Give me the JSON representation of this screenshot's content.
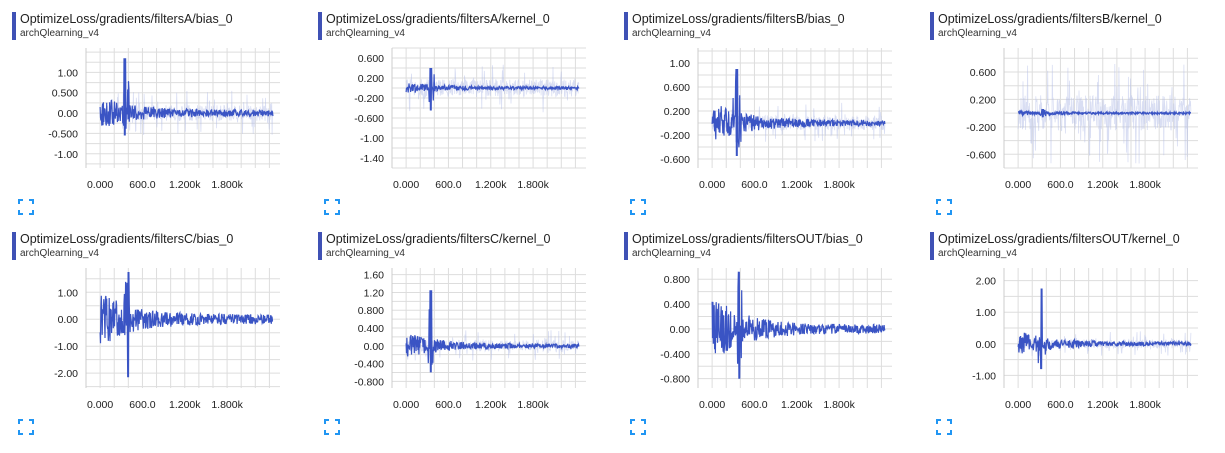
{
  "icons": {
    "expand": "expand-icon"
  },
  "colors": {
    "series": "#3a54c4",
    "series_faint": "#b4bee8",
    "grid": "#dddddd",
    "header_bar": "#3f51b5",
    "expand": "#2196f3"
  },
  "charts": [
    {
      "title": "OptimizeLoss/gradients/filtersA/bias_0",
      "run": "archQlearning_v4",
      "chart_data": {
        "type": "line",
        "series": [
          {
            "name": "archQlearning_v4"
          }
        ],
        "x_ticks": [
          0,
          600,
          1200,
          1800
        ],
        "x_tick_labels": [
          "0.000",
          "600.0",
          "1.200k",
          "1.800k"
        ],
        "xlim": [
          -200,
          2550
        ],
        "y_ticks": [
          1.0,
          0.5,
          0.0,
          -0.5,
          -1.0
        ],
        "y_tick_labels": [
          "1.00",
          "0.500",
          "0.00",
          "-0.500",
          "-1.00"
        ],
        "ylim": [
          -1.35,
          1.6
        ],
        "x_range": [
          0,
          2450
        ],
        "peak_x": 350,
        "peak_max": 1.35,
        "peak_min": -0.55,
        "early_amp": 0.35,
        "late_amp": 0.08,
        "center": 0.0,
        "noise_amp": 0.55,
        "grid": true
      }
    },
    {
      "title": "OptimizeLoss/gradients/filtersA/kernel_0",
      "run": "archQlearning_v4",
      "chart_data": {
        "type": "line",
        "series": [
          {
            "name": "archQlearning_v4"
          }
        ],
        "x_ticks": [
          0,
          600,
          1200,
          1800
        ],
        "x_tick_labels": [
          "0.000",
          "600.0",
          "1.200k",
          "1.800k"
        ],
        "xlim": [
          -200,
          2550
        ],
        "y_ticks": [
          0.6,
          0.2,
          -0.2,
          -0.6,
          -1.0,
          -1.4
        ],
        "y_tick_labels": [
          "0.600",
          "0.200",
          "-0.200",
          "-0.600",
          "-1.00",
          "-1.40"
        ],
        "ylim": [
          -1.6,
          0.8
        ],
        "x_range": [
          0,
          2450
        ],
        "peak_x": 350,
        "peak_max": 0.4,
        "peak_min": -0.45,
        "early_amp": 0.1,
        "late_amp": 0.03,
        "center": 0.0,
        "noise_amp": 0.5,
        "grid": true
      }
    },
    {
      "title": "OptimizeLoss/gradients/filtersB/bias_0",
      "run": "archQlearning_v4",
      "chart_data": {
        "type": "line",
        "series": [
          {
            "name": "archQlearning_v4"
          }
        ],
        "x_ticks": [
          0,
          600,
          1200,
          1800
        ],
        "x_tick_labels": [
          "0.000",
          "600.0",
          "1.200k",
          "1.800k"
        ],
        "xlim": [
          -200,
          2550
        ],
        "y_ticks": [
          1.0,
          0.6,
          0.2,
          -0.2,
          -0.6
        ],
        "y_tick_labels": [
          "1.00",
          "0.600",
          "0.200",
          "-0.200",
          "-0.600"
        ],
        "ylim": [
          -0.75,
          1.25
        ],
        "x_range": [
          0,
          2450
        ],
        "peak_x": 350,
        "peak_max": 0.9,
        "peak_min": -0.55,
        "early_amp": 0.3,
        "late_amp": 0.05,
        "center": 0.0,
        "noise_amp": 0.35,
        "grid": true
      }
    },
    {
      "title": "OptimizeLoss/gradients/filtersB/kernel_0",
      "run": "archQlearning_v4",
      "chart_data": {
        "type": "line",
        "series": [
          {
            "name": "archQlearning_v4"
          }
        ],
        "x_ticks": [
          0,
          600,
          1200,
          1800
        ],
        "x_tick_labels": [
          "0.000",
          "600.0",
          "1.200k",
          "1.800k"
        ],
        "xlim": [
          -200,
          2550
        ],
        "y_ticks": [
          0.6,
          0.2,
          -0.2,
          -0.6
        ],
        "y_tick_labels": [
          "0.600",
          "0.200",
          "-0.200",
          "-0.600"
        ],
        "ylim": [
          -0.8,
          0.95
        ],
        "x_range": [
          0,
          2450
        ],
        "peak_x": 350,
        "peak_max": 0.06,
        "peak_min": -0.06,
        "early_amp": 0.03,
        "late_amp": 0.015,
        "center": 0.0,
        "noise_amp": 0.75,
        "grid": true
      }
    },
    {
      "title": "OptimizeLoss/gradients/filtersC/bias_0",
      "run": "archQlearning_v4",
      "chart_data": {
        "type": "line",
        "series": [
          {
            "name": "archQlearning_v4"
          }
        ],
        "x_ticks": [
          0,
          600,
          1200,
          1800
        ],
        "x_tick_labels": [
          "0.000",
          "600.0",
          "1.200k",
          "1.800k"
        ],
        "xlim": [
          -200,
          2550
        ],
        "y_ticks": [
          1.0,
          0.0,
          -1.0,
          -2.0
        ],
        "y_tick_labels": [
          "1.00",
          "0.00",
          "-1.00",
          "-2.00"
        ],
        "ylim": [
          -2.55,
          1.9
        ],
        "x_range": [
          0,
          2450
        ],
        "peak_x": 400,
        "peak_max": 1.75,
        "peak_min": -2.15,
        "early_amp": 0.9,
        "late_amp": 0.18,
        "center": 0.0,
        "noise_amp": 0.0,
        "grid": true
      }
    },
    {
      "title": "OptimizeLoss/gradients/filtersC/kernel_0",
      "run": "archQlearning_v4",
      "chart_data": {
        "type": "line",
        "series": [
          {
            "name": "archQlearning_v4"
          }
        ],
        "x_ticks": [
          0,
          600,
          1200,
          1800
        ],
        "x_tick_labels": [
          "0.000",
          "600.0",
          "1.200k",
          "1.800k"
        ],
        "xlim": [
          -200,
          2550
        ],
        "y_ticks": [
          1.6,
          1.2,
          0.8,
          0.4,
          0.0,
          -0.4,
          -0.8
        ],
        "y_tick_labels": [
          "1.60",
          "1.20",
          "0.800",
          "0.400",
          "0.00",
          "-0.400",
          "-0.800"
        ],
        "ylim": [
          -0.95,
          1.75
        ],
        "x_range": [
          0,
          2450
        ],
        "peak_x": 350,
        "peak_max": 1.25,
        "peak_min": -0.6,
        "early_amp": 0.25,
        "late_amp": 0.05,
        "center": 0.0,
        "noise_amp": 0.35,
        "grid": true
      }
    },
    {
      "title": "OptimizeLoss/gradients/filtersOUT/bias_0",
      "run": "archQlearning_v4",
      "chart_data": {
        "type": "line",
        "series": [
          {
            "name": "archQlearning_v4"
          }
        ],
        "x_ticks": [
          0,
          600,
          1200,
          1800
        ],
        "x_tick_labels": [
          "0.000",
          "600.0",
          "1.200k",
          "1.800k"
        ],
        "xlim": [
          -200,
          2550
        ],
        "y_ticks": [
          0.8,
          0.4,
          0.0,
          -0.4,
          -0.8
        ],
        "y_tick_labels": [
          "0.800",
          "0.400",
          "0.00",
          "-0.400",
          "-0.800"
        ],
        "ylim": [
          -0.95,
          0.98
        ],
        "x_range": [
          0,
          2450
        ],
        "peak_x": 380,
        "peak_max": 0.92,
        "peak_min": -0.8,
        "early_amp": 0.45,
        "late_amp": 0.07,
        "center": 0.0,
        "noise_amp": 0.0,
        "grid": true
      }
    },
    {
      "title": "OptimizeLoss/gradients/filtersOUT/kernel_0",
      "run": "archQlearning_v4",
      "chart_data": {
        "type": "line",
        "series": [
          {
            "name": "archQlearning_v4"
          }
        ],
        "x_ticks": [
          0,
          600,
          1200,
          1800
        ],
        "x_tick_labels": [
          "0.000",
          "600.0",
          "1.200k",
          "1.800k"
        ],
        "xlim": [
          -200,
          2550
        ],
        "y_ticks": [
          2.0,
          1.0,
          0.0,
          -1.0
        ],
        "y_tick_labels": [
          "2.00",
          "1.00",
          "0.00",
          "-1.00"
        ],
        "ylim": [
          -1.4,
          2.4
        ],
        "x_range": [
          0,
          2450
        ],
        "peak_x": 330,
        "peak_max": 1.75,
        "peak_min": -0.8,
        "early_amp": 0.35,
        "late_amp": 0.06,
        "center": 0.0,
        "noise_amp": 0.4,
        "grid": true
      }
    }
  ]
}
